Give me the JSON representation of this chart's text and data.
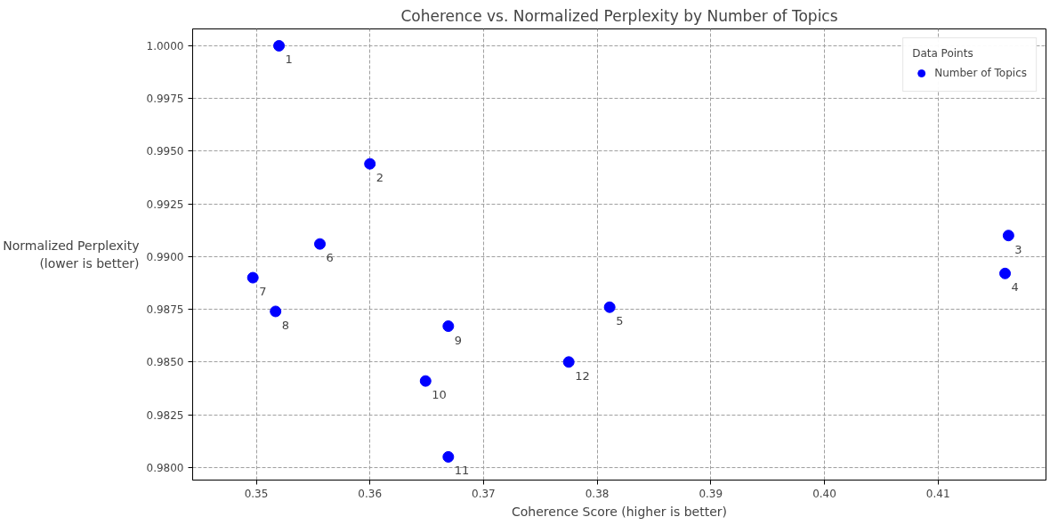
{
  "chart_data": {
    "type": "scatter",
    "title": "Coherence vs. Normalized Perplexity by Number of Topics",
    "xlabel": "Coherence Score (higher is better)",
    "ylabel": "Normalized Perplexity\n(lower is better)",
    "legend_title": "Data Points",
    "x": [
      0.352,
      0.36,
      0.4162,
      0.4159,
      0.3811,
      0.3556,
      0.3497,
      0.3517,
      0.3669,
      0.3649,
      0.3669,
      0.3775
    ],
    "series": [
      {
        "name": "Number of Topics",
        "color": "#0000ff",
        "values": [
          1.0,
          0.9944,
          0.991,
          0.9892,
          0.9876,
          0.9906,
          0.989,
          0.9874,
          0.9867,
          0.9841,
          0.9805,
          0.985
        ]
      }
    ],
    "annotations": [
      {
        "text": "1",
        "x": 0.352,
        "y": 1.0
      },
      {
        "text": "2",
        "x": 0.36,
        "y": 0.9944
      },
      {
        "text": "3",
        "x": 0.4162,
        "y": 0.991
      },
      {
        "text": "4",
        "x": 0.4159,
        "y": 0.9892
      },
      {
        "text": "5",
        "x": 0.3811,
        "y": 0.9876
      },
      {
        "text": "6",
        "x": 0.3556,
        "y": 0.9906
      },
      {
        "text": "7",
        "x": 0.3497,
        "y": 0.989
      },
      {
        "text": "8",
        "x": 0.3517,
        "y": 0.9874
      },
      {
        "text": "9",
        "x": 0.3669,
        "y": 0.9867
      },
      {
        "text": "10",
        "x": 0.3649,
        "y": 0.9841
      },
      {
        "text": "11",
        "x": 0.3669,
        "y": 0.9805
      },
      {
        "text": "12",
        "x": 0.3775,
        "y": 0.985
      }
    ],
    "xlim": [
      0.3444,
      0.4195
    ],
    "ylim": [
      0.9794,
      1.0008
    ],
    "xticks": [
      0.35,
      {
        "value": 0.36,
        "label": "0.36"
      },
      {
        "value": 0.37,
        "label": "0.37"
      },
      {
        "value": 0.38,
        "label": "0.38"
      },
      {
        "value": 0.39,
        "label": "0.39"
      },
      {
        "value": 0.4,
        "label": "0.40"
      },
      {
        "value": 0.41,
        "label": "0.41"
      }
    ],
    "yticks": [
      {
        "value": 0.98,
        "label": "0.9800"
      },
      {
        "value": 0.9825,
        "label": "0.9825"
      },
      {
        "value": 0.985,
        "label": "0.9850"
      },
      {
        "value": 0.9875,
        "label": "0.9875"
      },
      {
        "value": 0.99,
        "label": "0.9900"
      },
      {
        "value": 0.9925,
        "label": "0.9925"
      },
      {
        "value": 0.995,
        "label": "0.9950"
      },
      {
        "value": 0.9975,
        "label": "0.9975"
      },
      {
        "value": 1.0,
        "label": "1.0000"
      }
    ],
    "grid": true,
    "legend": "top right",
    "marker": "circle"
  }
}
